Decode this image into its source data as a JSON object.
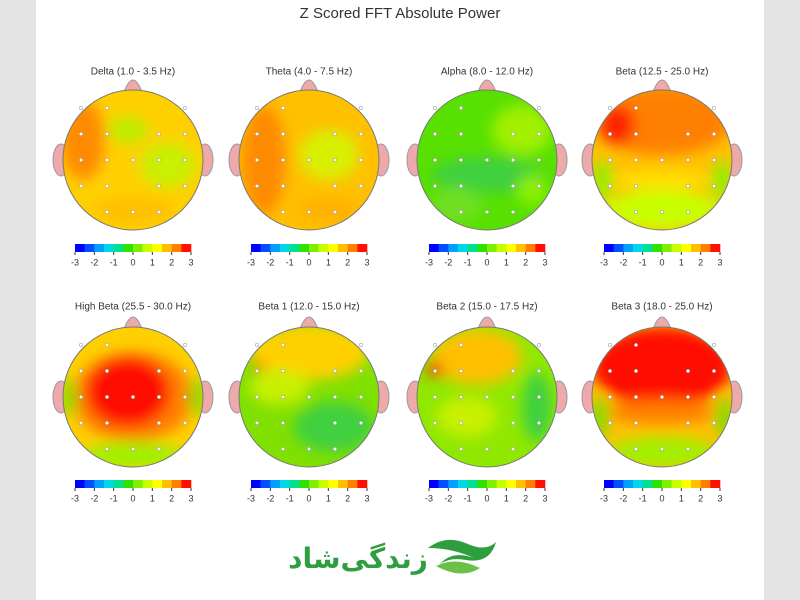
{
  "title": "Z Scored FFT Absolute Power",
  "maps": [
    {
      "label": "Delta (1.0 - 3.5 Hz)"
    },
    {
      "label": "Theta (4.0 - 7.5 Hz)"
    },
    {
      "label": "Alpha (8.0 - 12.0 Hz)"
    },
    {
      "label": "Beta (12.5 - 25.0 Hz)"
    },
    {
      "label": "High Beta (25.5 - 30.0 Hz)"
    },
    {
      "label": "Beta 1 (12.0 - 15.0 Hz)"
    },
    {
      "label": "Beta 2 (15.0 - 17.5 Hz)"
    },
    {
      "label": "Beta 3 (18.0 - 25.0 Hz)"
    }
  ],
  "colorbar": {
    "ticks": [
      -3,
      -2,
      -1,
      0,
      1,
      2,
      3
    ],
    "colors": [
      "#0000ff",
      "#0050ff",
      "#00a0ff",
      "#00d8e8",
      "#00e090",
      "#30e000",
      "#80f000",
      "#c8ff00",
      "#ffff00",
      "#ffc000",
      "#ff8000",
      "#ff1000"
    ]
  },
  "logo": {
    "text": "زندگی‌شاد"
  }
}
